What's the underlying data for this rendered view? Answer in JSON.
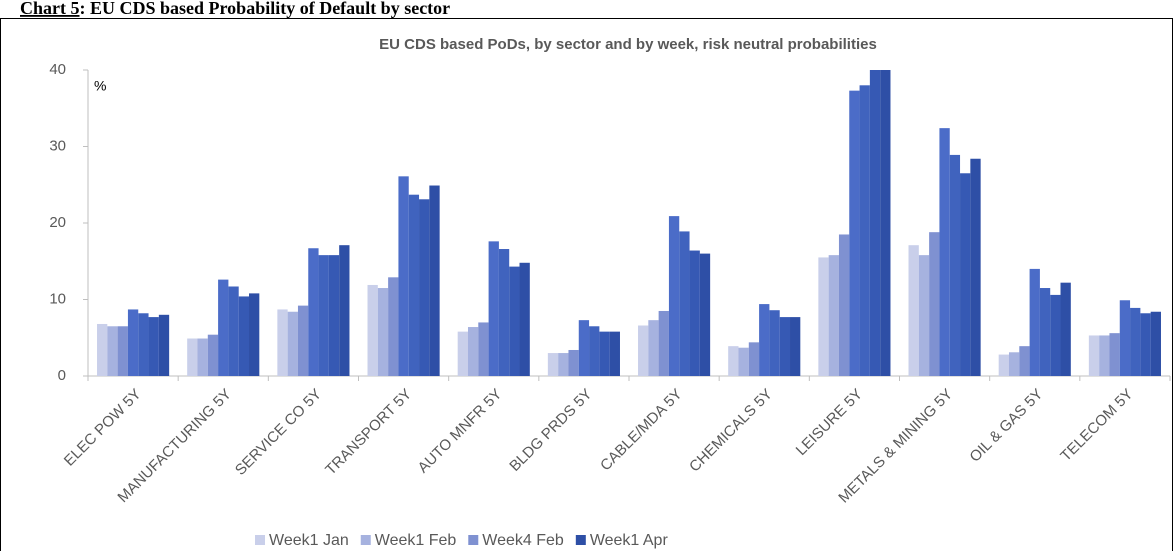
{
  "header": {
    "label": "Chart 5",
    "title": ": EU CDS based Probability of Default by sector"
  },
  "chart_data": {
    "type": "bar",
    "title": "EU CDS based PoDs, by sector and by week, risk neutral probabilities",
    "y_label": "%",
    "categories": [
      "ELEC POW 5Y",
      "MANUFACTURING 5Y",
      "SERVICE CO 5Y",
      "TRANSPORT 5Y",
      "AUTO MNFR 5Y",
      "BLDG PRDS 5Y",
      "CABLE/MDA 5Y",
      "CHEMICALS 5Y",
      "LEISURE 5Y",
      "METALS & MINING 5Y",
      "OIL & GAS 5Y",
      "TELECOM 5Y"
    ],
    "series": [
      {
        "name": "Week1 Jan",
        "color": "#c9cfea",
        "values": [
          6.8,
          4.9,
          8.7,
          11.9,
          5.8,
          3.0,
          6.6,
          3.9,
          15.5,
          17.1,
          2.8,
          5.3
        ]
      },
      {
        "name": "Week1 Feb",
        "color": "#a6b2df",
        "values": [
          6.5,
          4.9,
          8.4,
          11.5,
          6.4,
          3.0,
          7.3,
          3.7,
          15.8,
          15.8,
          3.1,
          5.3
        ]
      },
      {
        "name": "Week4 Feb",
        "color": "#7f91d1",
        "values": [
          6.5,
          5.4,
          9.2,
          12.9,
          7.0,
          3.4,
          8.5,
          4.4,
          18.5,
          18.8,
          3.9,
          5.6
        ]
      },
      {
        "color": "#4b6cc8",
        "values": [
          8.7,
          12.6,
          16.7,
          26.1,
          17.6,
          7.3,
          20.9,
          9.4,
          37.3,
          32.4,
          14.0,
          9.9
        ]
      },
      {
        "color": "#4063be",
        "values": [
          8.2,
          11.7,
          15.8,
          23.7,
          16.6,
          6.5,
          18.9,
          8.6,
          38.0,
          28.9,
          11.5,
          8.9
        ]
      },
      {
        "color": "#3659b4",
        "values": [
          7.7,
          10.4,
          15.8,
          23.1,
          14.3,
          5.8,
          16.4,
          7.7,
          40,
          26.5,
          10.6,
          8.2
        ]
      },
      {
        "name": "Week1 Apr",
        "color": "#2e4fa6",
        "values": [
          8.0,
          10.8,
          17.1,
          24.9,
          14.8,
          5.8,
          16.0,
          7.7,
          40,
          28.4,
          12.2,
          8.4
        ]
      }
    ],
    "ylim": [
      0,
      40
    ],
    "yticks": [
      0,
      10,
      20,
      30,
      40
    ],
    "grid": false
  }
}
